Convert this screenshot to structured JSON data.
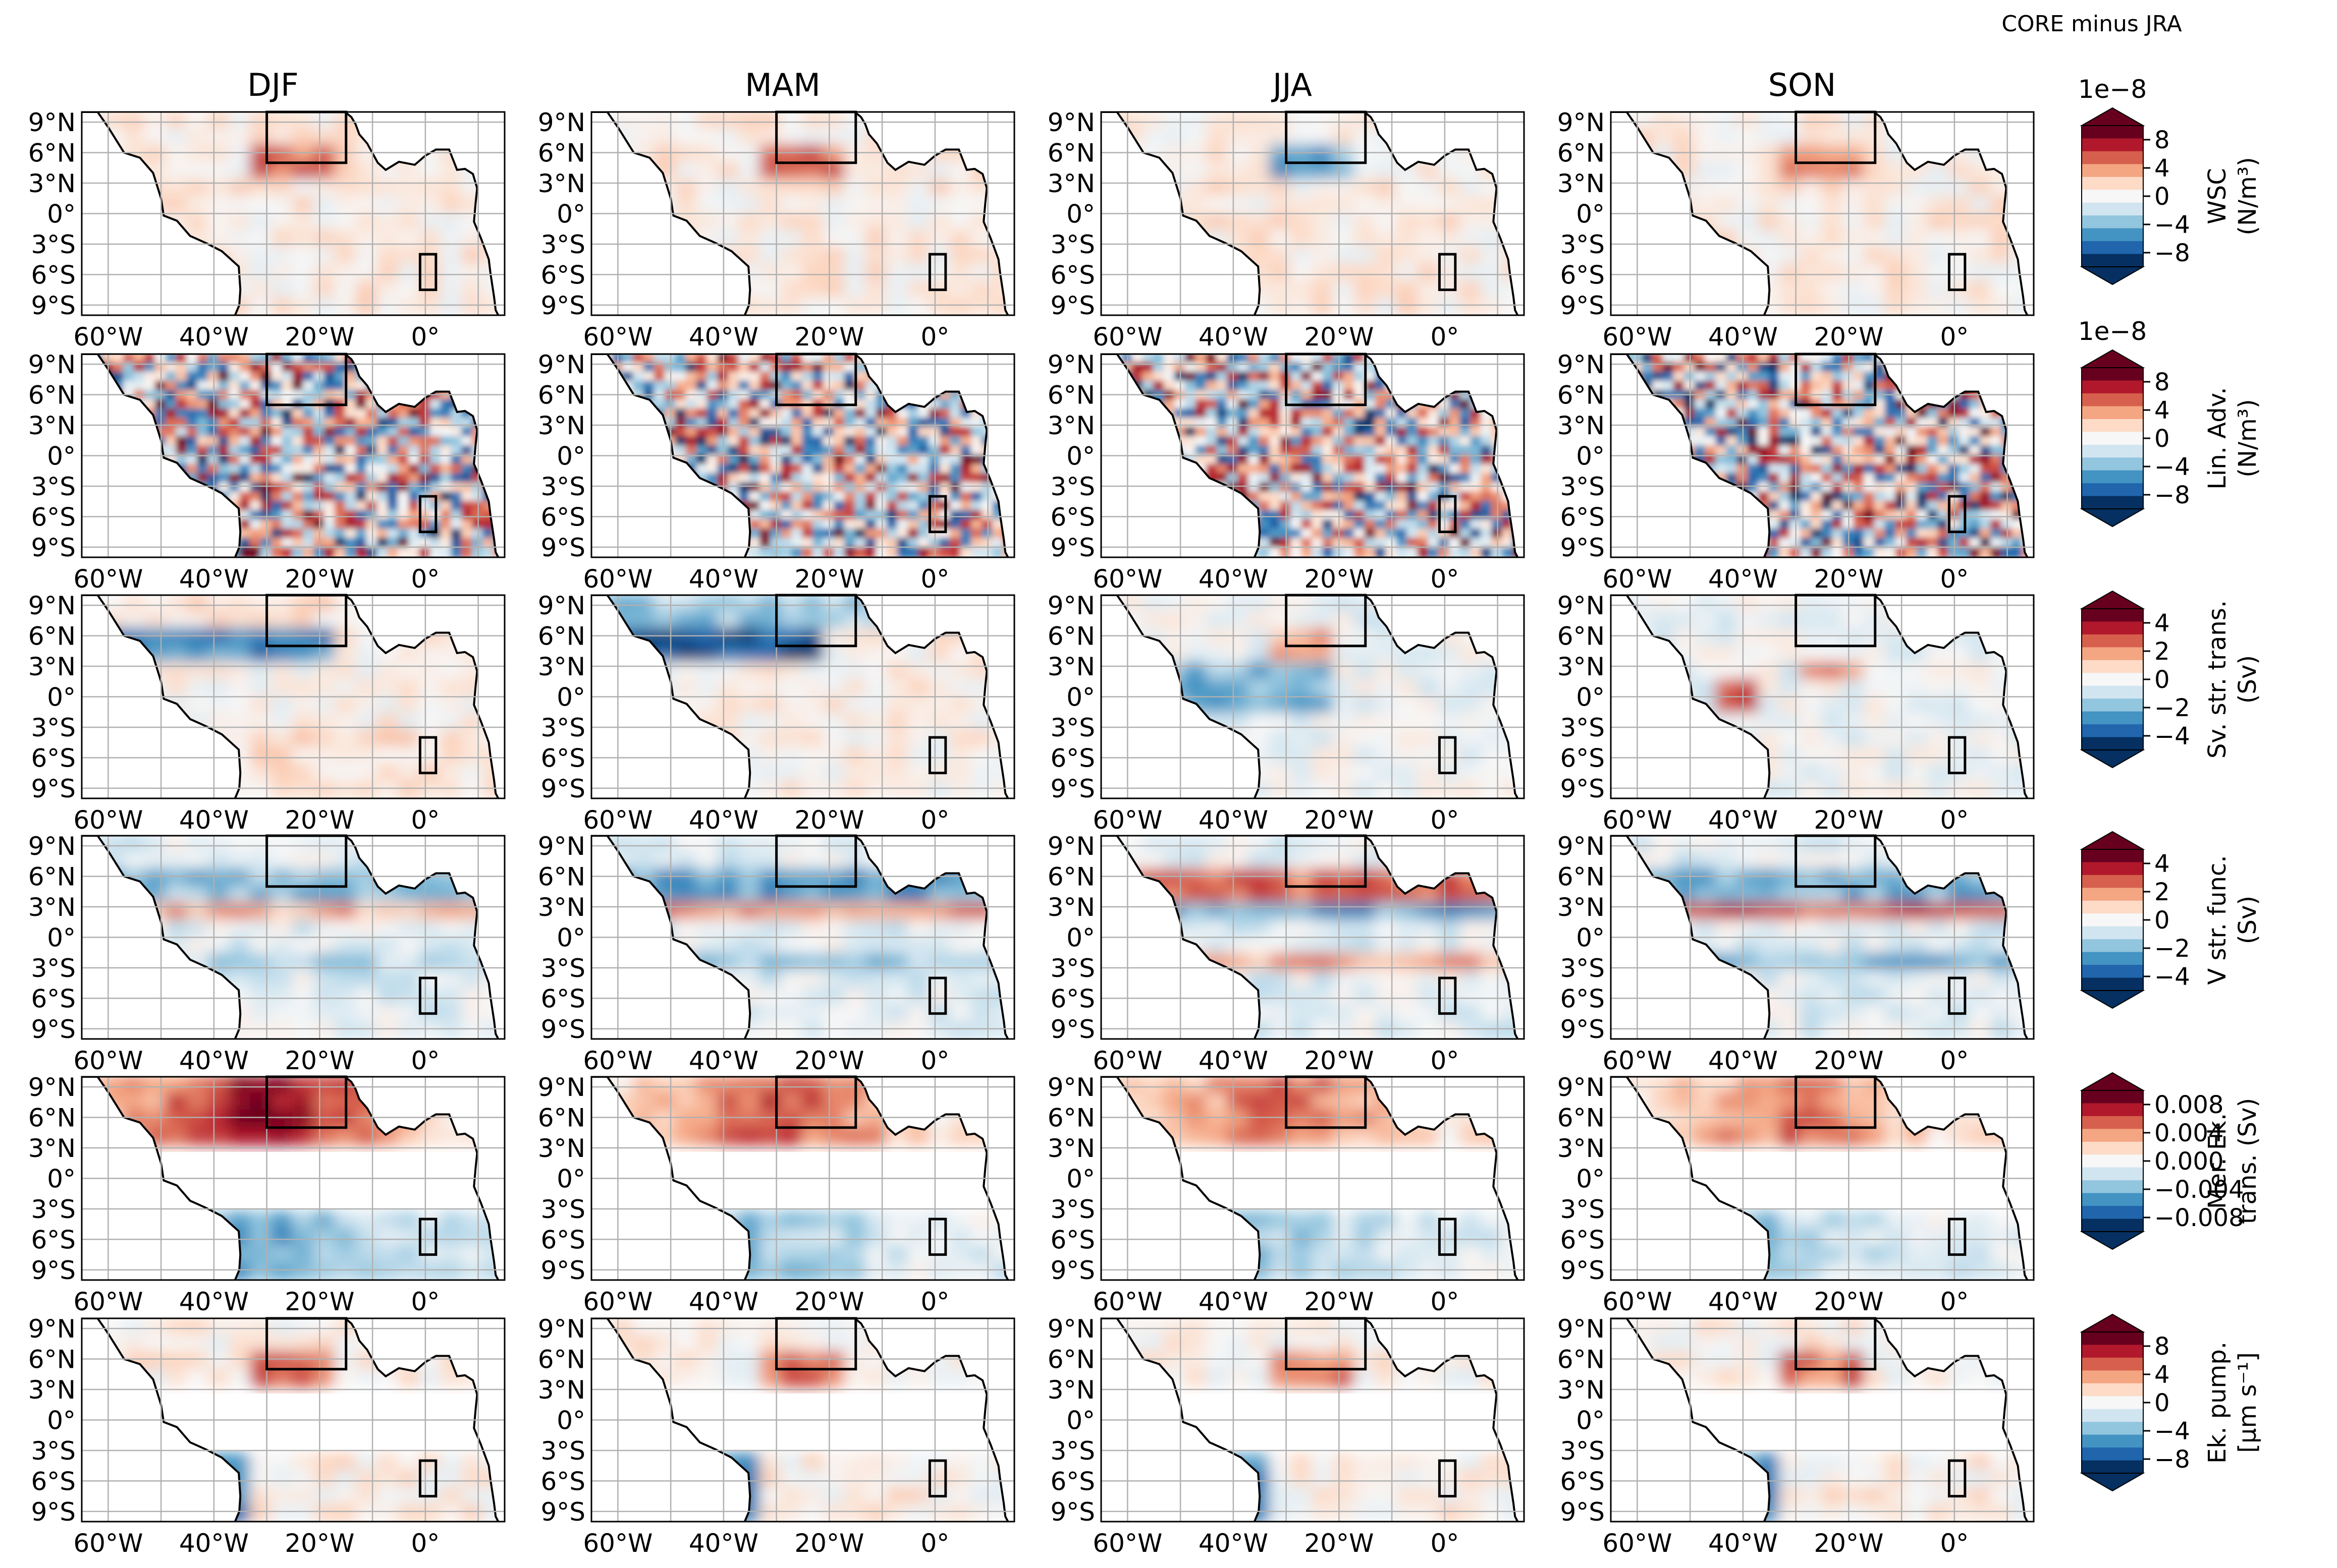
{
  "figure": {
    "suptitle": "CORE minus JRA",
    "seasons": [
      "DJF",
      "MAM",
      "JJA",
      "SON"
    ],
    "lat_ticks": [
      "9°N",
      "6°N",
      "3°N",
      "0°",
      "3°S",
      "6°S",
      "9°S"
    ],
    "lon_ticks": [
      "60°W",
      "40°W",
      "20°W",
      "0°"
    ],
    "colormap": "RdBu_r",
    "colors": {
      "neg_strong": "#053061",
      "neg_mid": "#4393c3",
      "neutral": "#f7f7f7",
      "pos_mid": "#f4a582",
      "pos_strong": "#67001f",
      "box": "#000000",
      "grid": "#b0b0b0"
    }
  },
  "chart_data": {
    "type": "heatmap",
    "title": "CORE minus JRA",
    "columns": [
      "DJF",
      "MAM",
      "JJA",
      "SON"
    ],
    "grid": true,
    "xlim": [
      "65°W",
      "15°E"
    ],
    "ylim": [
      "10°S",
      "10°N"
    ],
    "rows": [
      {
        "label": "WSC\n(N/m³)",
        "label_line1": "WSC",
        "label_line2": "(N/m³)",
        "scale": "1e−8",
        "ticks": [
          "8",
          "4",
          "0",
          "−4",
          "−8"
        ],
        "range": [
          -10,
          10
        ],
        "equatorial_mask": false
      },
      {
        "label": "Lin. Adv.\n(N/m³)",
        "label_line1": "Lin. Adv.",
        "label_line2": "(N/m³)",
        "scale": "1e−8",
        "ticks": [
          "8",
          "4",
          "0",
          "−4",
          "−8"
        ],
        "range": [
          -10,
          10
        ],
        "equatorial_mask": false
      },
      {
        "label": "Sv. str. trans.\n(Sv)",
        "label_line1": "Sv. str. trans.",
        "label_line2": "(Sv)",
        "scale": "",
        "ticks": [
          "4",
          "2",
          "0",
          "−2",
          "−4"
        ],
        "range": [
          -5,
          5
        ],
        "equatorial_mask": false
      },
      {
        "label": "V str. func.\n(Sv)",
        "label_line1": "V str. func.",
        "label_line2": "(Sv)",
        "scale": "",
        "ticks": [
          "4",
          "2",
          "0",
          "−2",
          "−4"
        ],
        "range": [
          -5,
          5
        ],
        "equatorial_mask": false
      },
      {
        "label": "Mer. Ek.\ntrans. (Sv)",
        "label_line1": "Mer. Ek.",
        "label_line2": "trans. (Sv)",
        "scale": "",
        "ticks": [
          "0.008",
          "0.004",
          "0.000",
          "−0.004",
          "−0.008"
        ],
        "range": [
          -0.01,
          0.01
        ],
        "equatorial_mask": true
      },
      {
        "label": "Ek. pump.\n[μm s⁻¹]",
        "label_line1": "Ek. pump.",
        "label_line2": "[μm s⁻¹]",
        "scale": "",
        "ticks": [
          "8",
          "4",
          "0",
          "−4",
          "−8"
        ],
        "range": [
          -10,
          10
        ],
        "equatorial_mask": true
      }
    ],
    "boxes": [
      {
        "name": "north box",
        "lon": [
          -30,
          -15
        ],
        "lat": [
          5,
          10
        ]
      },
      {
        "name": "south box",
        "lon": [
          -1,
          2
        ],
        "lat": [
          -7.5,
          -4
        ]
      }
    ]
  }
}
